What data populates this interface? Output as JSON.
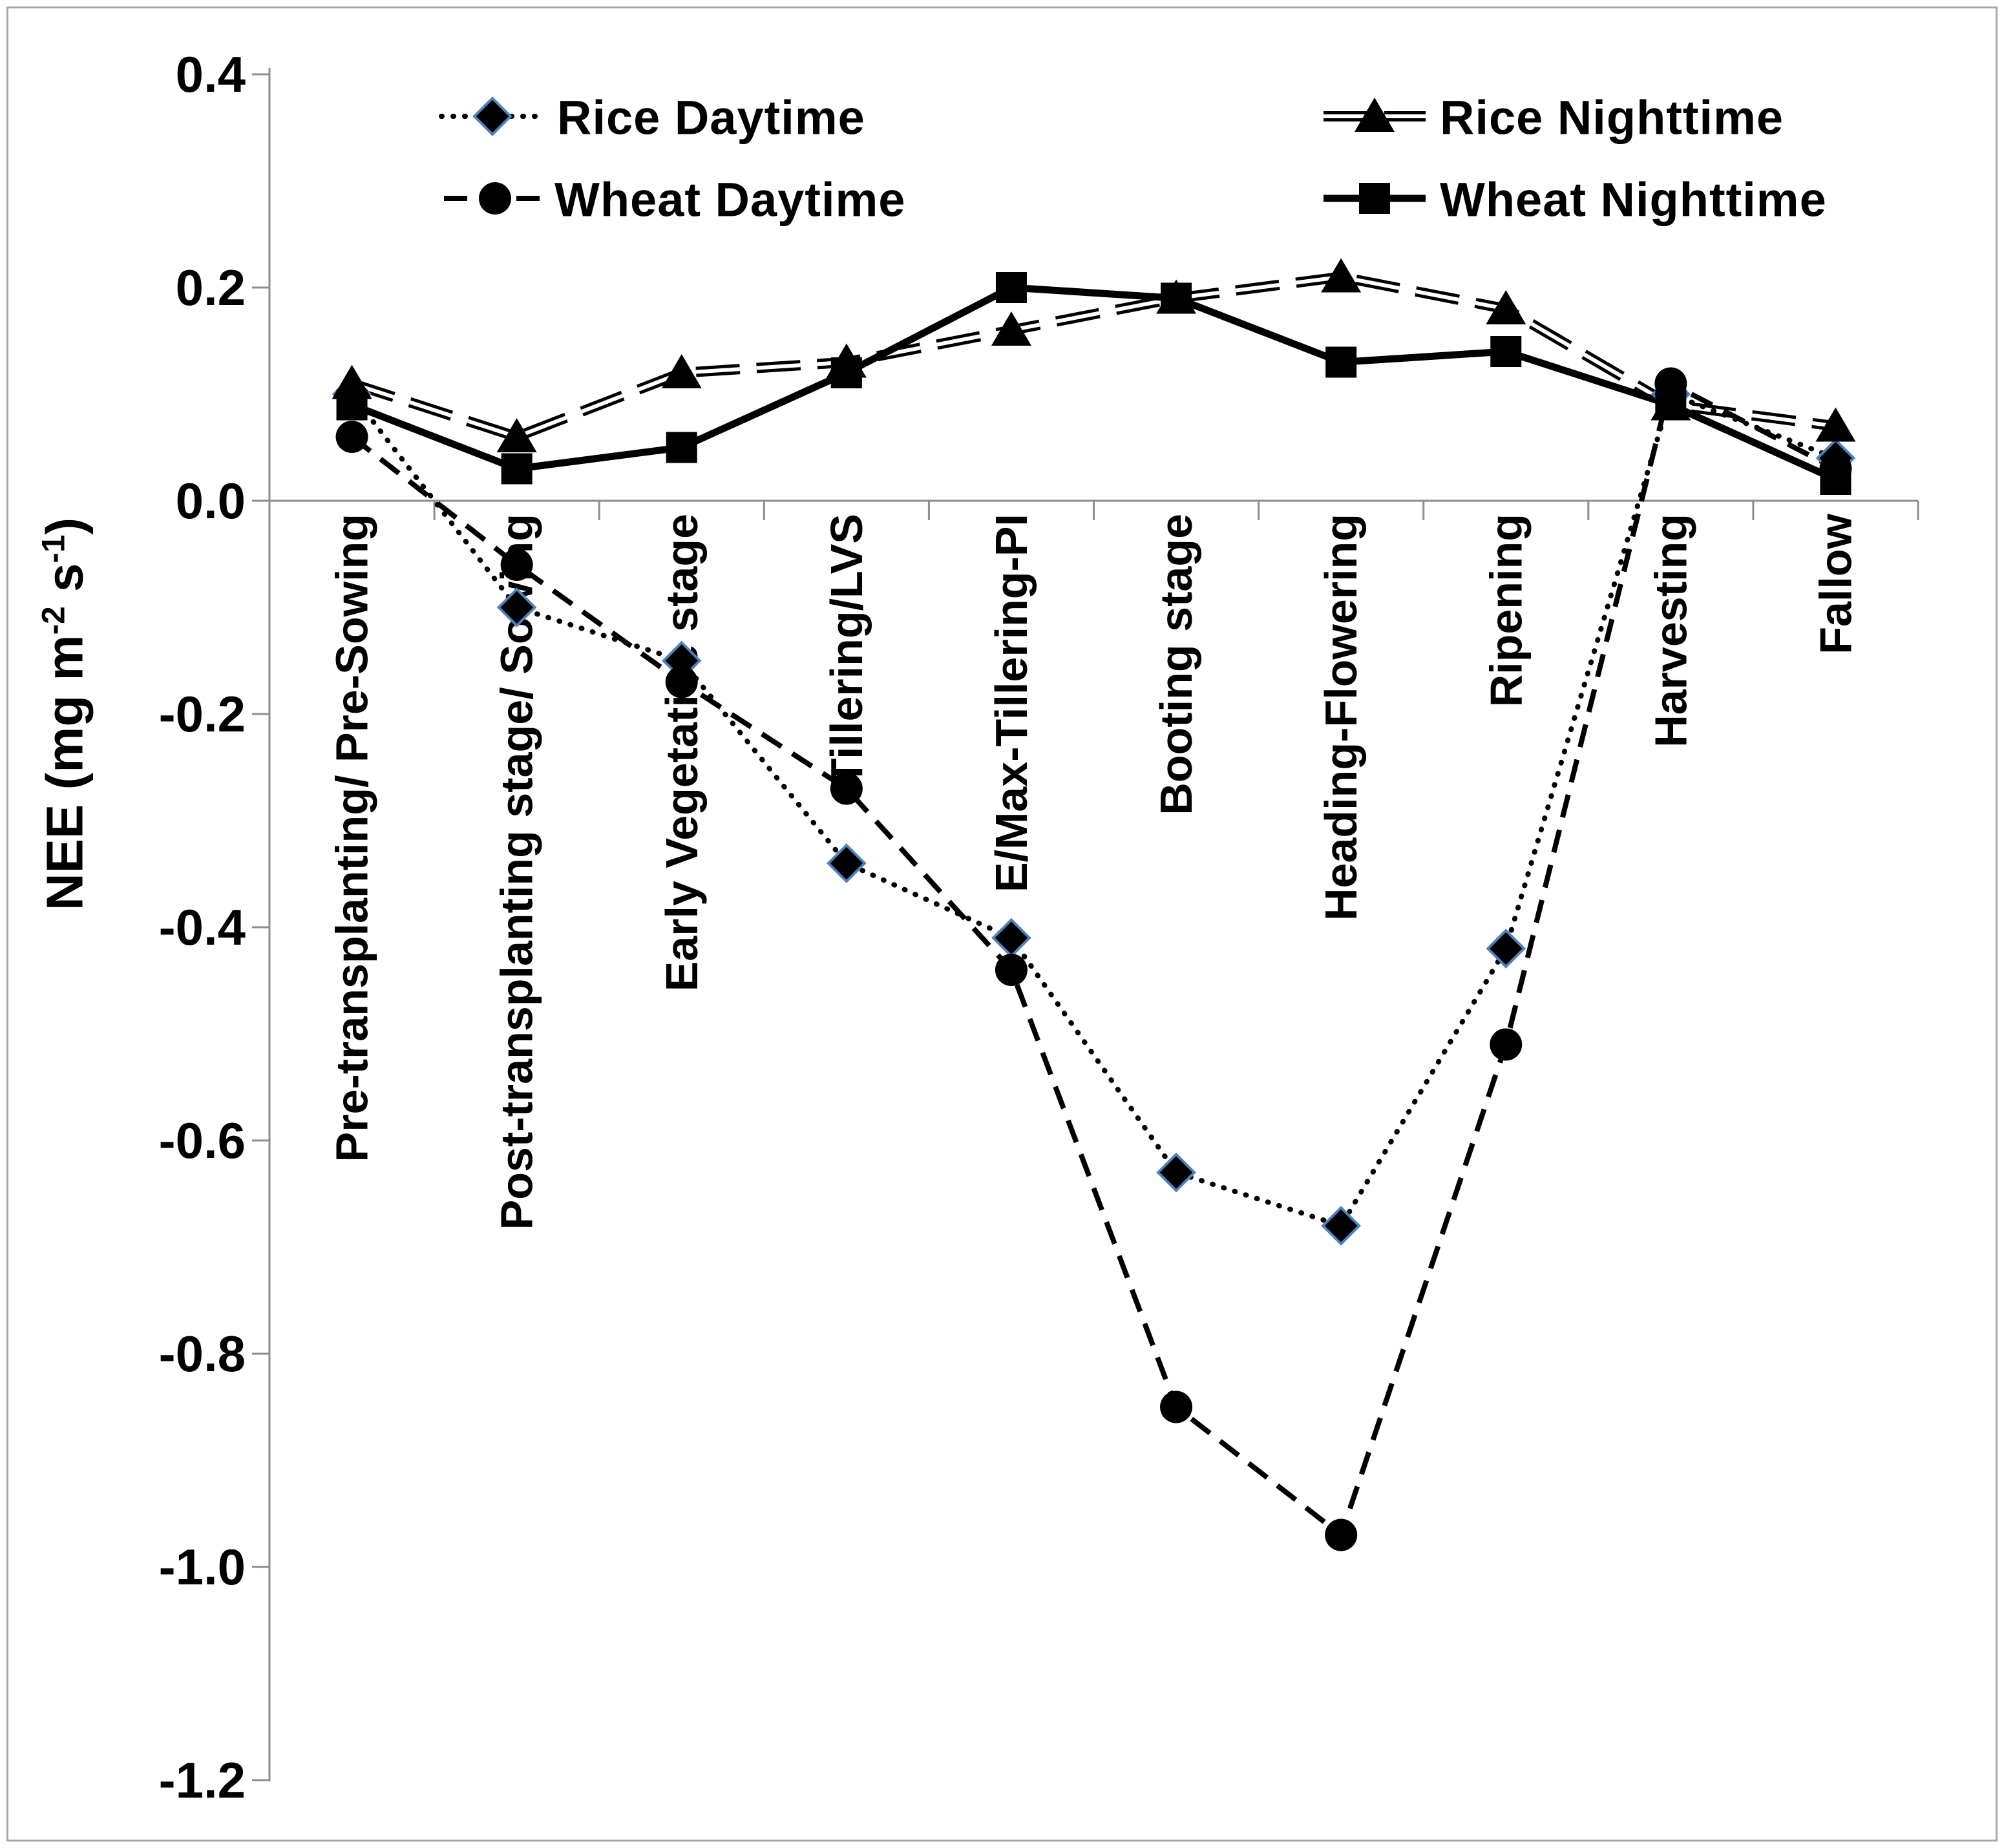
{
  "figure": {
    "background": "#FFFFFF",
    "frame_color": "#A8A8A8"
  },
  "chart_data": {
    "type": "line",
    "title": "",
    "xlabel": "",
    "ylabel": "NEE (mg m-2 s-1)",
    "ylabel_parts": {
      "prefix": "NEE (mg m",
      "sup1": "-2",
      "mid": " s",
      "sup2": "-1",
      "suffix": ")"
    },
    "ylim": [
      -1.2,
      0.4
    ],
    "y_tick_labels": [
      "0.4",
      "0.2",
      "0.0",
      "-0.2",
      "-0.4",
      "-0.6",
      "-0.8",
      "-1.0",
      "-1.2"
    ],
    "grid": false,
    "legend_position": "top-inside",
    "categories": [
      "Pre-transplanting/ Pre-Sowing",
      "Post-transplanting stage/ Sowing",
      "Early Vegetative stage",
      "Tillering/LVS",
      "E/Max-Tillering-PI",
      "Booting stage",
      "Heading-Flowering",
      "Ripening",
      "Harvesting",
      "Fallow"
    ],
    "series": [
      {
        "name": "Rice Daytime",
        "marker": "diamond",
        "line_style": "dotted",
        "values": [
          0.1,
          -0.1,
          -0.15,
          -0.34,
          -0.41,
          -0.63,
          -0.68,
          -0.42,
          0.1,
          0.04
        ]
      },
      {
        "name": "Wheat Daytime",
        "marker": "circle",
        "line_style": "dashed",
        "values": [
          0.06,
          -0.06,
          -0.17,
          -0.27,
          -0.44,
          -0.85,
          -0.97,
          -0.51,
          0.11,
          0.03
        ]
      },
      {
        "name": "Rice Nighttime",
        "marker": "triangle",
        "line_style": "long-dash-double",
        "values": [
          0.11,
          0.06,
          0.12,
          0.13,
          0.16,
          0.19,
          0.21,
          0.18,
          0.09,
          0.07
        ]
      },
      {
        "name": "Wheat Nighttime",
        "marker": "square",
        "line_style": "solid",
        "values": [
          0.09,
          0.03,
          0.05,
          0.12,
          0.2,
          0.19,
          0.13,
          0.14,
          0.09,
          0.02
        ]
      }
    ],
    "colors": {
      "line": "#000000",
      "diamond_edge": "#4F81BD",
      "axis": "#8C8C8C"
    }
  }
}
